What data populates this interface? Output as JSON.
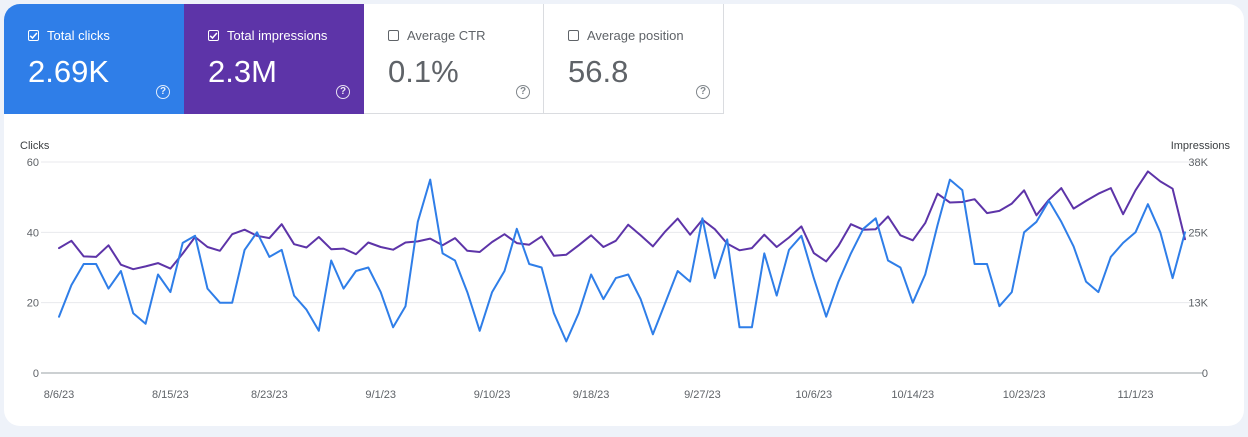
{
  "metrics": [
    {
      "label": "Total clicks",
      "value": "2.69K",
      "checked": true,
      "color": "#2f7ee8"
    },
    {
      "label": "Total impressions",
      "value": "2.3M",
      "checked": true,
      "color": "#5d34a8"
    },
    {
      "label": "Average CTR",
      "value": "0.1%",
      "checked": false
    },
    {
      "label": "Average position",
      "value": "56.8",
      "checked": false
    }
  ],
  "help_glyph": "?",
  "chart_data": {
    "type": "line",
    "xlabel": "",
    "ylabel_left": "Clicks",
    "ylabel_right": "Impressions",
    "ylim_left": [
      0,
      60
    ],
    "ylim_right": [
      0,
      38000
    ],
    "yticks_left": [
      "0",
      "20",
      "40",
      "60"
    ],
    "yticks_right": [
      "0",
      "13K",
      "25K",
      "38K"
    ],
    "xtick_labels": [
      "8/6/23",
      "8/15/23",
      "8/23/23",
      "9/1/23",
      "9/10/23",
      "9/18/23",
      "9/27/23",
      "10/6/23",
      "10/14/23",
      "10/23/23",
      "11/1/23"
    ],
    "xtick_index": [
      0,
      9,
      17,
      26,
      35,
      43,
      52,
      61,
      69,
      78,
      87
    ],
    "series": [
      {
        "name": "Clicks",
        "axis": "left",
        "color": "#2f7ee8",
        "values": [
          16,
          25,
          31,
          31,
          24,
          29,
          17,
          14,
          28,
          23,
          37,
          39,
          24,
          20,
          20,
          35,
          40,
          33,
          35,
          22,
          18,
          12,
          32,
          24,
          29,
          30,
          23,
          13,
          19,
          43,
          55,
          34,
          32,
          23,
          12,
          23,
          29,
          41,
          31,
          30,
          17,
          9,
          17,
          28,
          21,
          27,
          28,
          21,
          11,
          20,
          29,
          26,
          44,
          27,
          38,
          13,
          13,
          34,
          22,
          35,
          39,
          27,
          16,
          26,
          34,
          41,
          44,
          32,
          30,
          20,
          28,
          42,
          55,
          52,
          31,
          31,
          19,
          23,
          40,
          43,
          49,
          43,
          36,
          26,
          23,
          33,
          37,
          40,
          48,
          40,
          27,
          40
        ]
      },
      {
        "name": "Impressions",
        "axis": "right",
        "color": "#5d34a8",
        "values": [
          22500,
          23800,
          21000,
          20900,
          23000,
          19500,
          18700,
          19200,
          19800,
          18800,
          21500,
          24500,
          22700,
          22000,
          25000,
          25800,
          24700,
          24300,
          26800,
          23200,
          22600,
          24500,
          22300,
          22400,
          21400,
          23500,
          22700,
          22200,
          23500,
          23700,
          24200,
          23000,
          24300,
          22000,
          21800,
          23600,
          25000,
          23400,
          23100,
          24600,
          21100,
          21300,
          23000,
          24800,
          22700,
          23800,
          26700,
          24800,
          22800,
          25500,
          27800,
          24900,
          27600,
          25900,
          23300,
          22100,
          22500,
          24900,
          22700,
          24400,
          26400,
          21600,
          20100,
          22900,
          26800,
          25800,
          25900,
          28200,
          24800,
          23900,
          27000,
          32300,
          30700,
          30800,
          31300,
          28800,
          29200,
          30500,
          32900,
          28400,
          31200,
          33300,
          29600,
          31000,
          32300,
          33300,
          28600,
          32900,
          36300,
          34500,
          33200,
          24100
        ]
      }
    ]
  }
}
